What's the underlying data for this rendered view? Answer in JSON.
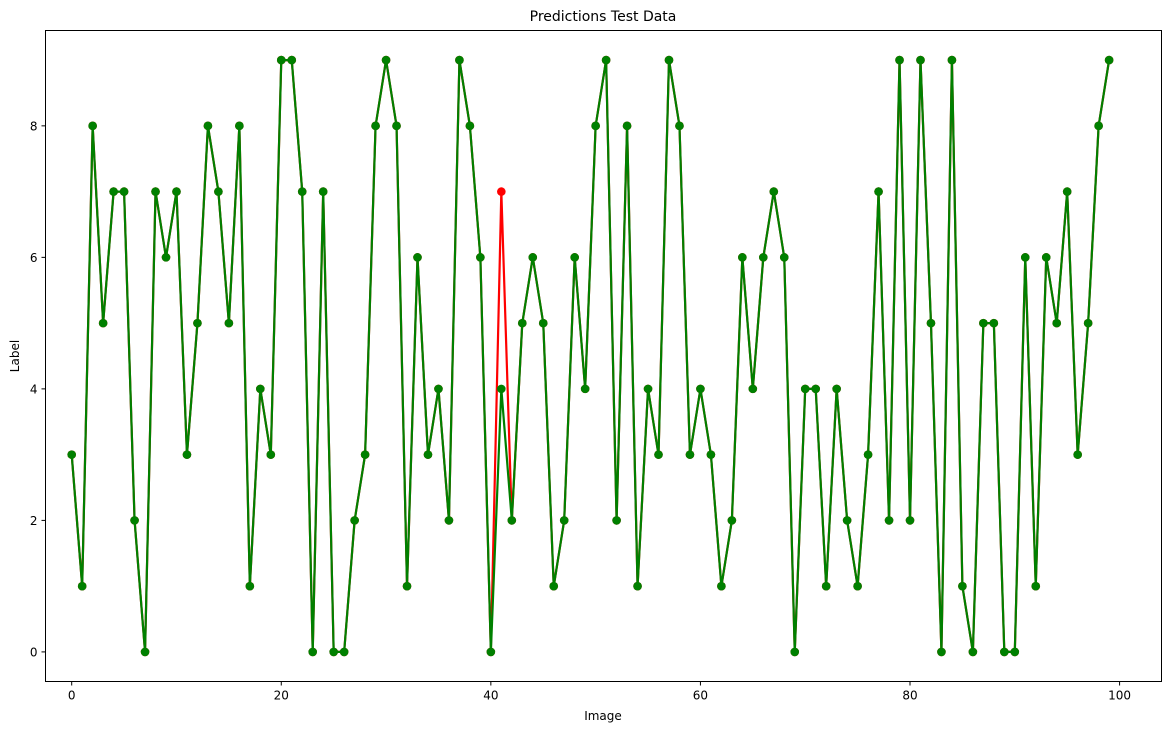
{
  "chart_data": {
    "type": "line",
    "title": "Predictions Test Data",
    "xlabel": "Image",
    "ylabel": "Label",
    "xlim": [
      -2.5,
      104
    ],
    "ylim": [
      -0.45,
      9.45
    ],
    "xticks": [
      0,
      20,
      40,
      60,
      80,
      100
    ],
    "yticks": [
      0,
      2,
      4,
      6,
      8
    ],
    "grid": false,
    "legend": "none",
    "x": [
      0,
      1,
      2,
      3,
      4,
      5,
      6,
      7,
      8,
      9,
      10,
      11,
      12,
      13,
      14,
      15,
      16,
      17,
      18,
      19,
      20,
      21,
      22,
      23,
      24,
      25,
      26,
      27,
      28,
      29,
      30,
      31,
      32,
      33,
      34,
      35,
      36,
      37,
      38,
      39,
      40,
      41,
      42,
      43,
      44,
      45,
      46,
      47,
      48,
      49,
      50,
      51,
      52,
      53,
      54,
      55,
      56,
      57,
      58,
      59,
      60,
      61,
      62,
      63,
      64,
      65,
      66,
      67,
      68,
      69,
      70,
      71,
      72,
      73,
      74,
      75,
      76,
      77,
      78,
      79,
      80,
      81,
      82,
      83,
      84,
      85,
      86,
      87,
      88,
      89,
      90,
      91,
      92,
      93,
      94,
      95,
      96,
      97,
      98,
      99
    ],
    "series": [
      {
        "color": "#ff0000",
        "marker": "circle",
        "values": [
          3,
          1,
          8,
          5,
          7,
          7,
          2,
          0,
          7,
          6,
          7,
          3,
          5,
          8,
          7,
          5,
          8,
          1,
          4,
          3,
          9,
          9,
          7,
          0,
          7,
          0,
          0,
          2,
          3,
          8,
          9,
          8,
          1,
          6,
          3,
          4,
          2,
          9,
          8,
          6,
          0,
          7,
          2,
          5,
          6,
          5,
          1,
          2,
          6,
          4,
          8,
          9,
          2,
          8,
          1,
          4,
          3,
          9,
          8,
          3,
          4,
          3,
          1,
          2,
          6,
          4,
          6,
          7,
          6,
          0,
          4,
          4,
          1,
          4,
          2,
          1,
          3,
          7,
          2,
          9,
          2,
          9,
          5,
          0,
          9,
          1,
          0,
          5,
          5,
          0,
          0,
          6,
          1,
          6,
          5,
          7,
          3,
          5,
          8,
          9
        ]
      },
      {
        "color": "#008000",
        "marker": "circle",
        "values": [
          3,
          1,
          8,
          5,
          7,
          7,
          2,
          0,
          7,
          6,
          7,
          3,
          5,
          8,
          7,
          5,
          8,
          1,
          4,
          3,
          9,
          9,
          7,
          0,
          7,
          0,
          0,
          2,
          3,
          8,
          9,
          8,
          1,
          6,
          3,
          4,
          2,
          9,
          8,
          6,
          0,
          4,
          2,
          5,
          6,
          5,
          1,
          2,
          6,
          4,
          8,
          9,
          2,
          8,
          1,
          4,
          3,
          9,
          8,
          3,
          4,
          3,
          1,
          2,
          6,
          4,
          6,
          7,
          6,
          0,
          4,
          4,
          1,
          4,
          2,
          1,
          3,
          7,
          2,
          9,
          2,
          9,
          5,
          0,
          9,
          1,
          0,
          5,
          5,
          0,
          0,
          6,
          1,
          6,
          5,
          7,
          3,
          5,
          8,
          9
        ]
      }
    ]
  }
}
